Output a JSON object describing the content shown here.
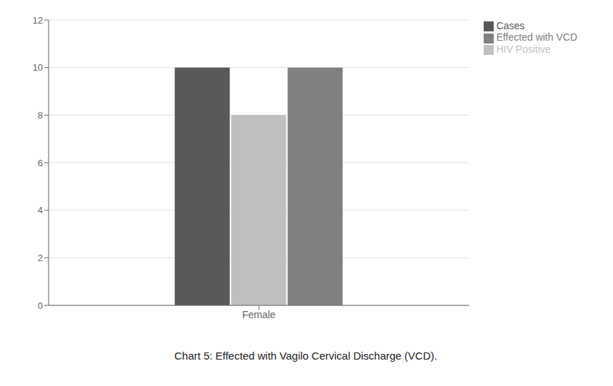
{
  "chart_data": {
    "type": "bar",
    "title": "Chart 5: Effected with Vagilo Cervical Discharge (VCD).",
    "categories": [
      "Female"
    ],
    "series": [
      {
        "name": "Cases",
        "color": "#595959",
        "values": [
          10
        ]
      },
      {
        "name": "HIV Positive",
        "color": "#bfbfbf",
        "values": [
          8
        ]
      },
      {
        "name": "Effected with VCD",
        "color": "#808080",
        "values": [
          10
        ]
      }
    ],
    "ylim": [
      0,
      12
    ],
    "yticks": [
      0,
      2,
      4,
      6,
      8,
      10,
      12
    ],
    "grid": true,
    "legend": "upper right"
  }
}
